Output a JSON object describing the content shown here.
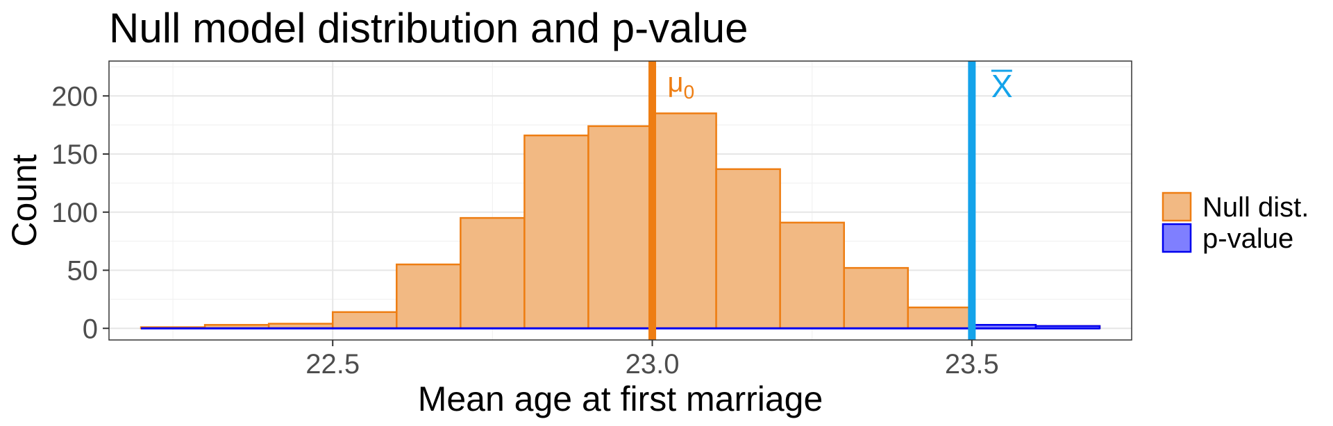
{
  "chart_data": {
    "type": "bar",
    "title": "Null model distribution and p-value",
    "xlabel": "Mean age at first marriage",
    "ylabel": "Count",
    "xlim": [
      22.15,
      23.75
    ],
    "ylim": [
      -10,
      230
    ],
    "x_ticks": [
      22.5,
      23.0,
      23.5
    ],
    "x_tick_labels": [
      "22.5",
      "23.0",
      "23.5"
    ],
    "y_ticks": [
      0,
      50,
      100,
      150,
      200
    ],
    "y_tick_labels": [
      "0",
      "50",
      "100",
      "150",
      "200"
    ],
    "bin_width": 0.1,
    "bins": [
      {
        "x0": 22.2,
        "x1": 22.3,
        "count": 1
      },
      {
        "x0": 22.3,
        "x1": 22.4,
        "count": 3
      },
      {
        "x0": 22.4,
        "x1": 22.5,
        "count": 4
      },
      {
        "x0": 22.5,
        "x1": 22.6,
        "count": 14
      },
      {
        "x0": 22.6,
        "x1": 22.7,
        "count": 55
      },
      {
        "x0": 22.7,
        "x1": 22.8,
        "count": 95
      },
      {
        "x0": 22.8,
        "x1": 22.9,
        "count": 166
      },
      {
        "x0": 22.9,
        "x1": 23.0,
        "count": 174
      },
      {
        "x0": 23.0,
        "x1": 23.1,
        "count": 185
      },
      {
        "x0": 23.1,
        "x1": 23.2,
        "count": 137
      },
      {
        "x0": 23.2,
        "x1": 23.3,
        "count": 91
      },
      {
        "x0": 23.3,
        "x1": 23.4,
        "count": 52
      },
      {
        "x0": 23.4,
        "x1": 23.5,
        "count": 18
      },
      {
        "x0": 23.5,
        "x1": 23.6,
        "count": 3
      },
      {
        "x0": 23.6,
        "x1": 23.7,
        "count": 2
      }
    ],
    "series": [
      {
        "name": "Null dist.",
        "fill": "#f2b983",
        "stroke": "#ee7d12"
      },
      {
        "name": "p-value",
        "fill": "#7f7fff",
        "stroke": "#0000ee"
      }
    ],
    "pvalue_region": {
      "x0": 23.5,
      "x1": 23.7
    },
    "vlines": [
      {
        "x": 23.0,
        "label": "μ",
        "subscript": "0",
        "color": "#ee7d12"
      },
      {
        "x": 23.5,
        "label": "X",
        "overline": true,
        "color": "#14a3ea"
      }
    ],
    "grid": true,
    "legend_position": "right"
  }
}
